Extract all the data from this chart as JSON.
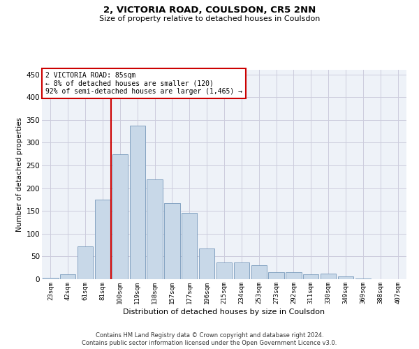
{
  "title1": "2, VICTORIA ROAD, COULSDON, CR5 2NN",
  "title2": "Size of property relative to detached houses in Coulsdon",
  "xlabel": "Distribution of detached houses by size in Coulsdon",
  "ylabel": "Number of detached properties",
  "categories": [
    "23sqm",
    "42sqm",
    "61sqm",
    "81sqm",
    "100sqm",
    "119sqm",
    "138sqm",
    "157sqm",
    "177sqm",
    "196sqm",
    "215sqm",
    "234sqm",
    "253sqm",
    "273sqm",
    "292sqm",
    "311sqm",
    "330sqm",
    "349sqm",
    "369sqm",
    "388sqm",
    "407sqm"
  ],
  "values": [
    3,
    10,
    72,
    175,
    275,
    338,
    220,
    167,
    145,
    68,
    37,
    37,
    30,
    16,
    15,
    10,
    12,
    6,
    1,
    0,
    0
  ],
  "bar_color": "#c8d8e8",
  "bar_edge_color": "#7799bb",
  "bar_edge_width": 0.6,
  "grid_color": "#ccccdd",
  "bg_color": "#eef2f8",
  "vline_x": 3.5,
  "vline_color": "#cc0000",
  "annotation_text": "2 VICTORIA ROAD: 85sqm\n← 8% of detached houses are smaller (120)\n92% of semi-detached houses are larger (1,465) →",
  "annotation_box_color": "#ffffff",
  "annotation_box_edge": "#cc0000",
  "ylim": [
    0,
    460
  ],
  "yticks": [
    0,
    50,
    100,
    150,
    200,
    250,
    300,
    350,
    400,
    450
  ],
  "footer1": "Contains HM Land Registry data © Crown copyright and database right 2024.",
  "footer2": "Contains public sector information licensed under the Open Government Licence v3.0."
}
